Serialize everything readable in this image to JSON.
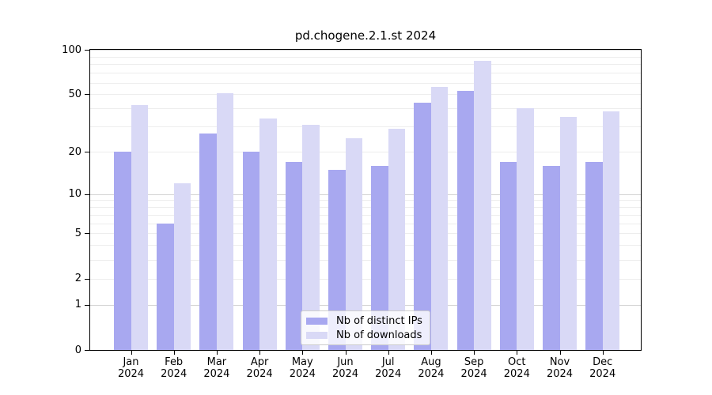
{
  "title": "pd.chogene.2.1.st 2024",
  "chart_data": {
    "type": "bar",
    "title": "pd.chogene.2.1.st 2024",
    "scale": "log10(value+1)",
    "categories": [
      "Jan",
      "Feb",
      "Mar",
      "Apr",
      "May",
      "Jun",
      "Jul",
      "Aug",
      "Sep",
      "Oct",
      "Nov",
      "Dec"
    ],
    "year_label": "2024",
    "series": [
      {
        "name": "Nb of distinct IPs",
        "color": "#a8a8f0",
        "values": [
          20,
          6,
          27,
          20,
          17,
          15,
          16,
          44,
          53,
          17,
          16,
          17
        ]
      },
      {
        "name": "Nb of downloads",
        "color": "#d9d9f6",
        "values": [
          42,
          12,
          51,
          34,
          31,
          25,
          29,
          56,
          84,
          40,
          35,
          38
        ]
      }
    ],
    "ylim": [
      0,
      100
    ],
    "y_ticks": [
      "100",
      "50",
      "20",
      "10",
      "5",
      "2",
      "1",
      "0"
    ],
    "y_tick_values": [
      100,
      50,
      20,
      10,
      5,
      2,
      1,
      0
    ],
    "major_gridlines": [
      1,
      10,
      100
    ],
    "minor_gridlines": [
      2,
      3,
      4,
      5,
      6,
      7,
      8,
      9,
      20,
      30,
      40,
      50,
      60,
      70,
      80,
      90
    ],
    "grid": "horizontal",
    "legend_position": "bottom-center"
  },
  "colors": {
    "bar_distinct_ips": "#a8a8f0",
    "bar_downloads": "#d9d9f6",
    "grid_minor": "#ededed",
    "grid_major": "#d3d3d3",
    "axis": "#000000",
    "legend_border": "#cccccc"
  }
}
